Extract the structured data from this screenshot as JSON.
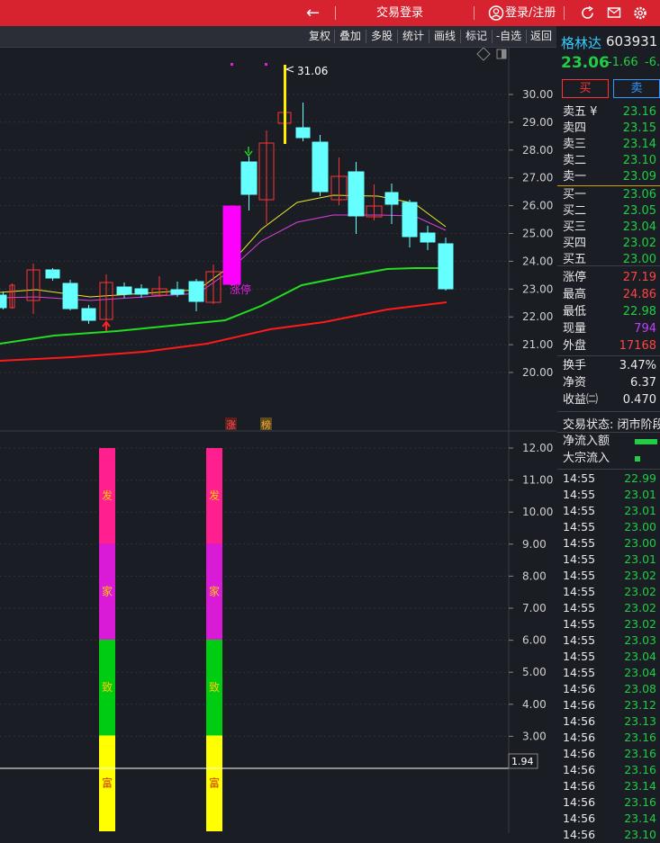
{
  "topbar": {
    "back_icon": "arrow-left-icon",
    "login_trade": "交易登录",
    "login_register": "登录/注册",
    "colors": {
      "bg": "#d6232f"
    }
  },
  "toolbar": {
    "buttons": [
      "复权",
      "叠加",
      "多股",
      "统计",
      "画线",
      "标记",
      "-自选",
      "返回"
    ]
  },
  "kline": {
    "high_label": "31.06",
    "limit_up_label": "涨停",
    "bottom_marks": [
      "涨",
      "榜"
    ],
    "price_axis": [
      "30.00",
      "29.00",
      "28.00",
      "27.00",
      "26.00",
      "25.00",
      "24.00",
      "23.00",
      "22.00",
      "21.00",
      "20.00"
    ]
  },
  "indicator": {
    "axis": [
      "12.00",
      "11.00",
      "10.00",
      "9.00",
      "8.00",
      "7.00",
      "6.00",
      "5.00",
      "4.00",
      "3.00"
    ],
    "current_value": "1.94",
    "bar_labels": [
      "发",
      "家",
      "致",
      "富"
    ],
    "bar_colors": [
      "#ff1f8e",
      "#d91ad6",
      "#00cc11",
      "#ffff00"
    ]
  },
  "stock": {
    "name": "格林达",
    "code": "603931",
    "price": "23.06",
    "change": "-1.66",
    "change_pct": "-6.",
    "buy_label": "买",
    "sell_label": "卖"
  },
  "orderbook": {
    "sell": [
      {
        "label": "卖五 ¥",
        "price": "23.16"
      },
      {
        "label": "卖四",
        "price": "23.15"
      },
      {
        "label": "卖三",
        "price": "23.14"
      },
      {
        "label": "卖二",
        "price": "23.10"
      },
      {
        "label": "卖一",
        "price": "23.09"
      }
    ],
    "buy": [
      {
        "label": "买一",
        "price": "23.06"
      },
      {
        "label": "买二",
        "price": "23.05"
      },
      {
        "label": "买三",
        "price": "23.04"
      },
      {
        "label": "买四",
        "price": "23.02"
      },
      {
        "label": "买五",
        "price": "23.00"
      }
    ]
  },
  "stats": [
    {
      "label": "涨停",
      "value": "27.19",
      "color": "#ff4444"
    },
    {
      "label": "最高",
      "value": "24.86",
      "color": "#ff4444"
    },
    {
      "label": "最低",
      "value": "22.98",
      "color": "#22cc44"
    },
    {
      "label": "现量",
      "value": "794",
      "color": "#c040ff"
    },
    {
      "label": "外盘",
      "value": "17168",
      "color": "#ff4444"
    }
  ],
  "fundamentals": [
    {
      "label": "换手",
      "value": "3.47%"
    },
    {
      "label": "净资",
      "value": "6.37"
    },
    {
      "label": "收益㈡",
      "value": "0.470"
    }
  ],
  "trade_status": "交易状态: 闭市阶段",
  "flows": [
    {
      "label": "净流入额",
      "bar": 0.9
    },
    {
      "label": "大宗流入",
      "bar": 0.2
    }
  ],
  "ticks": [
    {
      "time": "14:55",
      "price": "22.99"
    },
    {
      "time": "14:55",
      "price": "23.01"
    },
    {
      "time": "14:55",
      "price": "23.01"
    },
    {
      "time": "14:55",
      "price": "23.00"
    },
    {
      "time": "14:55",
      "price": "23.00"
    },
    {
      "time": "14:55",
      "price": "23.01"
    },
    {
      "time": "14:55",
      "price": "23.02"
    },
    {
      "time": "14:55",
      "price": "23.02"
    },
    {
      "time": "14:55",
      "price": "23.02"
    },
    {
      "time": "14:55",
      "price": "23.02"
    },
    {
      "time": "14:55",
      "price": "23.03"
    },
    {
      "time": "14:55",
      "price": "23.04"
    },
    {
      "time": "14:55",
      "price": "23.04"
    },
    {
      "time": "14:56",
      "price": "23.08"
    },
    {
      "time": "14:56",
      "price": "23.12"
    },
    {
      "time": "14:56",
      "price": "23.13"
    },
    {
      "time": "14:56",
      "price": "23.16"
    },
    {
      "time": "14:56",
      "price": "23.16"
    },
    {
      "time": "14:56",
      "price": "23.16"
    },
    {
      "time": "14:56",
      "price": "23.14"
    },
    {
      "time": "14:56",
      "price": "23.16"
    },
    {
      "time": "14:56",
      "price": "23.14"
    },
    {
      "time": "14:56",
      "price": "23.10"
    }
  ]
}
